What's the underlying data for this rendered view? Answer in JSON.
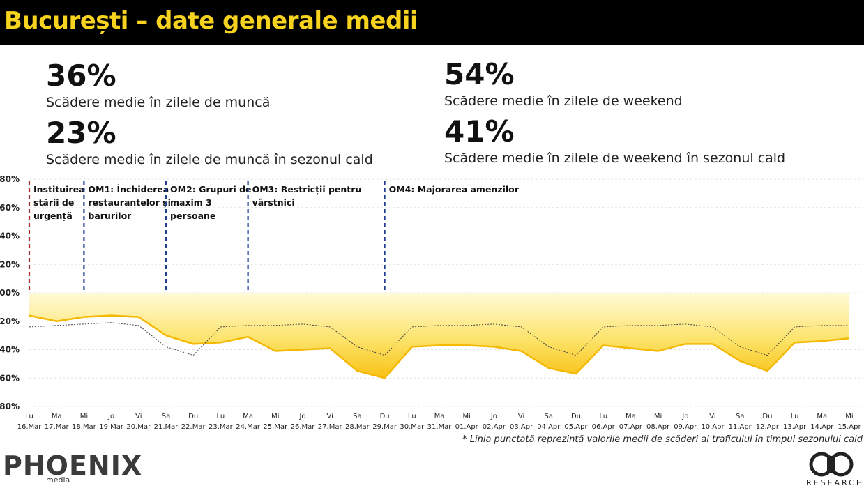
{
  "header": {
    "title": "București – date generale medii"
  },
  "stats": [
    {
      "value": "36%",
      "label": "Scădere medie în zilele de muncă"
    },
    {
      "value": "54%",
      "label": "Scădere medie în zilele de weekend"
    },
    {
      "value": "23%",
      "label": "Scădere medie în zilele de muncă în sezonul cald"
    },
    {
      "value": "41%",
      "label": "Scădere medie în zilele de weekend în sezonul cald"
    }
  ],
  "footnote": "* Linia punctată reprezintă valorile medii de scăderi al traficului în timpul sezonului cald",
  "logos": {
    "left_word": "PHOENIX",
    "left_sub": "media",
    "right_word": "RESEARCH"
  },
  "colors": {
    "accent": "#f7d21e",
    "area": "#f9c416",
    "event_red": "#a52a2a",
    "event_blue": "#1f3f8f"
  },
  "chart_data": {
    "type": "area",
    "title": "",
    "xlabel": "",
    "ylabel": "",
    "ylim": [
      -80,
      80
    ],
    "yticks": [
      "80%",
      "60%",
      "40%",
      "20%",
      "00%",
      "-20%",
      "-40%",
      "-60%",
      "-80%"
    ],
    "grid": true,
    "days": [
      "Lu",
      "Ma",
      "Mi",
      "Jo",
      "Vi",
      "Sa",
      "Du",
      "Lu",
      "Ma",
      "Mi",
      "Jo",
      "Vi",
      "Sa",
      "Du",
      "Lu",
      "Ma",
      "Mi",
      "Jo",
      "Vi",
      "Sa",
      "Du",
      "Lu",
      "Ma",
      "Mi",
      "Jo",
      "Vi",
      "Sa",
      "Du",
      "Lu",
      "Ma",
      "Mi"
    ],
    "dates": [
      "16.Mar",
      "17.Mar",
      "18.Mar",
      "19.Mar",
      "20.Mar",
      "21.Mar",
      "22.Mar",
      "23.Mar",
      "24.Mar",
      "25.Mar",
      "26.Mar",
      "27.Mar",
      "28.Mar",
      "29.Mar",
      "30.Mar",
      "31.Mar",
      "01.Apr",
      "02.Apr",
      "03.Apr",
      "04.Apr",
      "05.Apr",
      "06.Apr",
      "07.Apr",
      "08.Apr",
      "09.Apr",
      "10.Apr",
      "11.Apr",
      "12.Apr",
      "13.Apr",
      "14.Apr",
      "15.Apr"
    ],
    "series": [
      {
        "values": [
          -16,
          -20,
          -17,
          -16,
          -17,
          -30,
          -36,
          -35,
          -31,
          -41,
          -40,
          -39,
          -55,
          -60,
          -38,
          -37,
          -37,
          -38,
          -41,
          -53,
          -57,
          -37,
          -39,
          -41,
          -36,
          -36,
          -48,
          -55,
          -35,
          -34,
          -32
        ]
      },
      {
        "values": [
          -24,
          -23,
          -22,
          -21,
          -23,
          -38,
          -44,
          -24,
          -23,
          -23,
          -22,
          -24,
          -38,
          -44,
          -24,
          -23,
          -23,
          -22,
          -24,
          -38,
          -44,
          -24,
          -23,
          -23,
          -22,
          -24,
          -38,
          -44,
          -24,
          -23,
          -23
        ]
      }
    ],
    "events": [
      {
        "index": 0,
        "label": [
          "Instituirea",
          "stării de",
          "urgență"
        ],
        "color": "#a52a2a"
      },
      {
        "index": 2,
        "label": [
          "OM1: Închiderea",
          "restaurantelor și",
          "barurilor"
        ],
        "color": "#1f3f8f"
      },
      {
        "index": 5,
        "label": [
          "OM2: Grupuri de",
          "maxim 3",
          "persoane"
        ],
        "color": "#1f3f8f"
      },
      {
        "index": 8,
        "label": [
          "OM3: Restricții pentru",
          "vârstnici"
        ],
        "color": "#1f3f8f"
      },
      {
        "index": 13,
        "label": [
          "OM4: Majorarea amenzilor"
        ],
        "color": "#1f3f8f"
      }
    ]
  }
}
